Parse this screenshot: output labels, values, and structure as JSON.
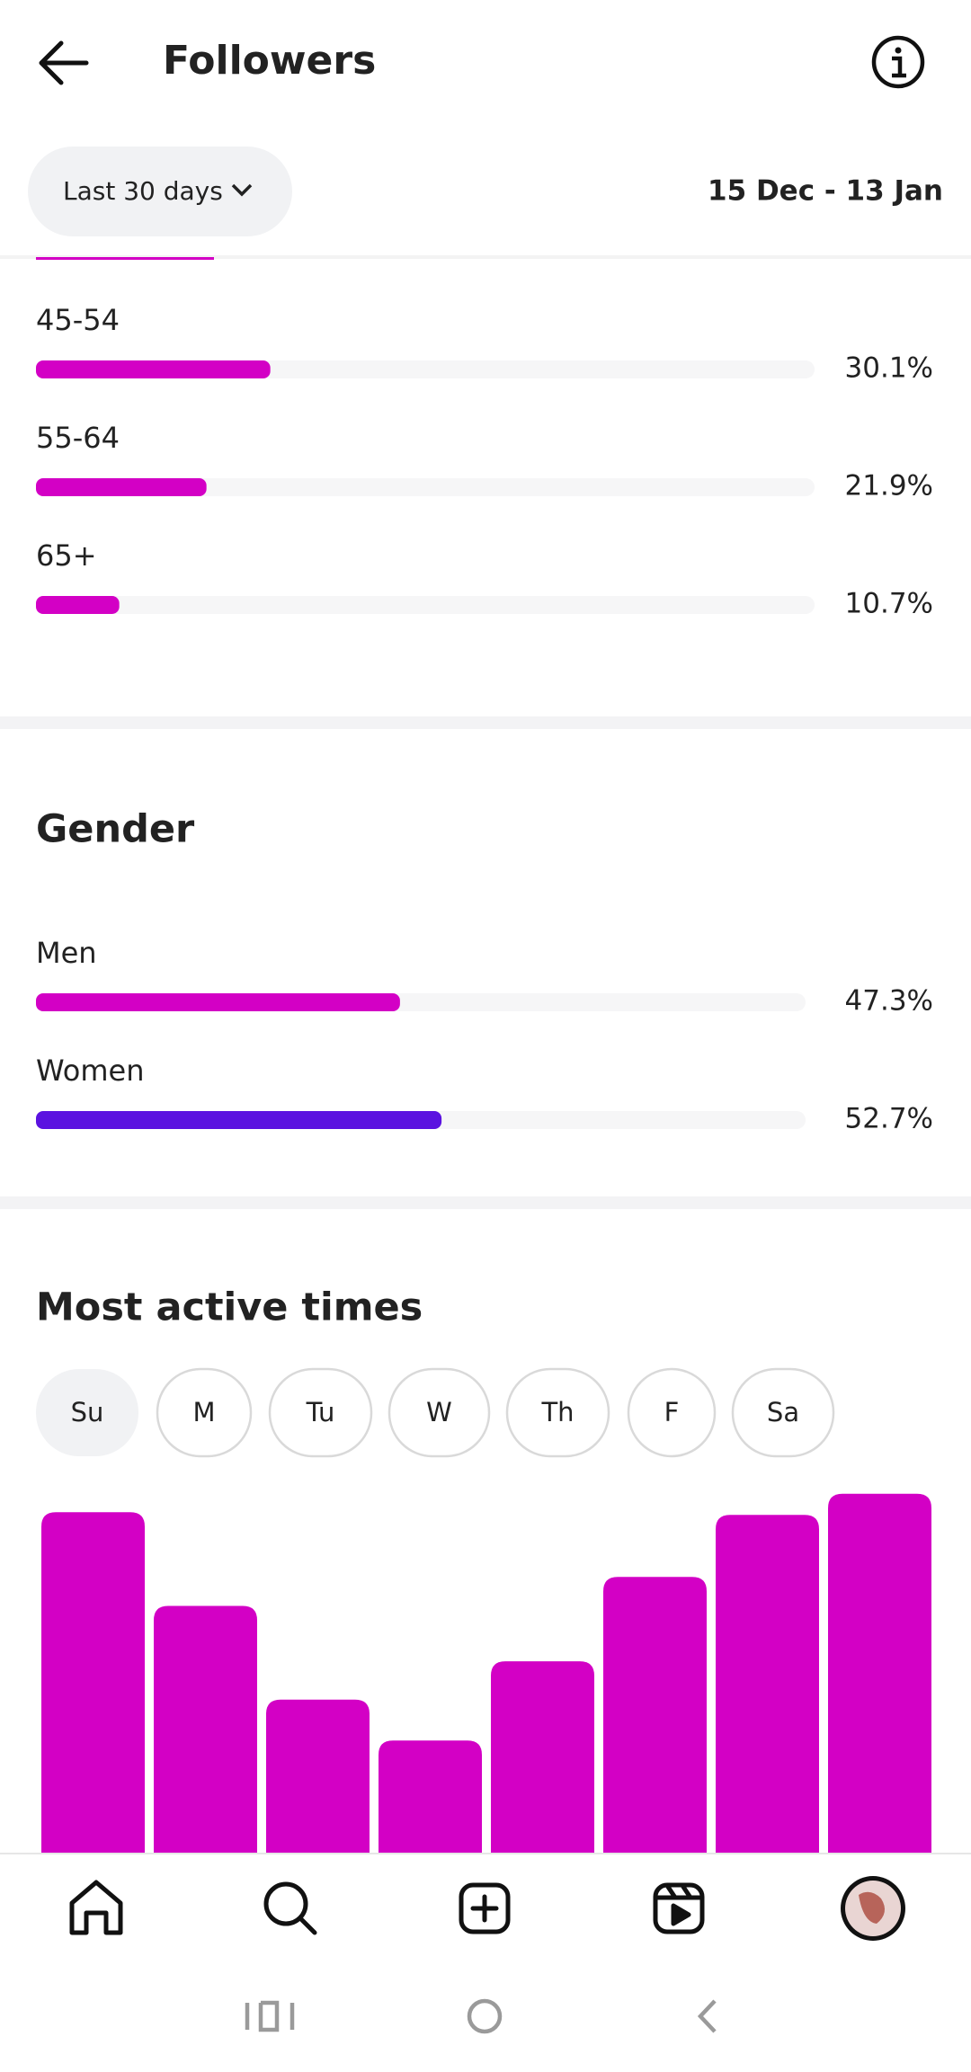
{
  "header": {
    "title": "Followers"
  },
  "filter": {
    "range": "Last 30 days",
    "dates": "15 Dec - 13 Jan"
  },
  "age": {
    "xlim": [
      0,
      100
    ],
    "color": "#d300c5",
    "groups": [
      {
        "label": "45-54",
        "value": 30.1,
        "value_label": "30.1%"
      },
      {
        "label": "55-64",
        "value": 21.9,
        "value_label": "21.9%"
      },
      {
        "label": "65+",
        "value": 10.7,
        "value_label": "10.7%"
      }
    ]
  },
  "gender": {
    "title": "Gender",
    "xlim": [
      0,
      100
    ],
    "groups": [
      {
        "label": "Men",
        "value": 47.3,
        "value_label": "47.3%",
        "color": "#d300c5"
      },
      {
        "label": "Women",
        "value": 52.7,
        "value_label": "52.7%",
        "color": "#5b12e0"
      }
    ]
  },
  "active_times": {
    "title": "Most active times",
    "days": [
      "Su",
      "M",
      "Tu",
      "W",
      "Th",
      "F",
      "Sa"
    ],
    "selected_day": 0,
    "chart_data": {
      "type": "bar",
      "categories": [
        null,
        null,
        null,
        null,
        null,
        null,
        null,
        null
      ],
      "values": [
        258,
        187,
        116,
        85,
        145,
        209,
        256,
        272
      ],
      "ylim": [
        0,
        280
      ],
      "color": "#d300c5"
    }
  }
}
